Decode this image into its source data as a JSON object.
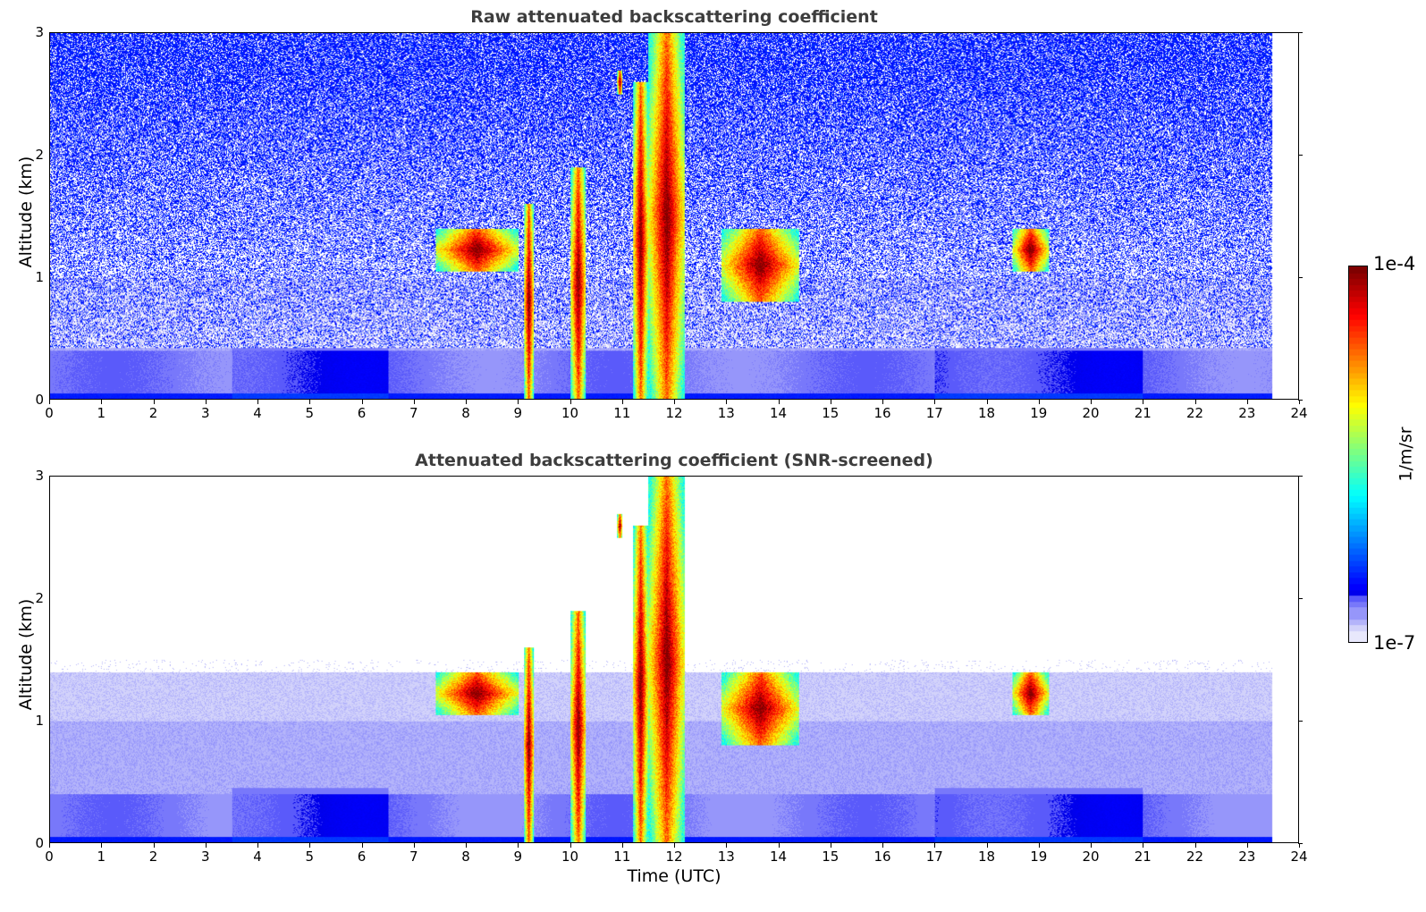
{
  "chart_data": [
    {
      "type": "heatmap",
      "title": "Raw attenuated backscattering coefficient",
      "xlabel": "",
      "ylabel": "Altitude (km)",
      "xlim": [
        0,
        24
      ],
      "ylim": [
        0,
        3
      ],
      "xticks": [
        "0",
        "1",
        "2",
        "3",
        "4",
        "5",
        "6",
        "7",
        "8",
        "9",
        "10",
        "11",
        "12",
        "13",
        "14",
        "15",
        "16",
        "17",
        "18",
        "19",
        "20",
        "21",
        "22",
        "23",
        "24"
      ],
      "yticks": [
        "0",
        "1",
        "2",
        "3"
      ],
      "data_end_time": 23.5,
      "cloud_features": [
        {
          "time_start": 7.4,
          "time_end": 9.0,
          "alt_base": 1.05,
          "alt_top": 1.4
        },
        {
          "time_start": 9.1,
          "time_end": 9.3,
          "alt_base": 0.0,
          "alt_top": 1.6
        },
        {
          "time_start": 10.0,
          "time_end": 10.3,
          "alt_base": 0.0,
          "alt_top": 1.9
        },
        {
          "time_start": 10.9,
          "time_end": 11.0,
          "alt_base": 2.5,
          "alt_top": 2.7
        },
        {
          "time_start": 11.2,
          "time_end": 11.5,
          "alt_base": 0.0,
          "alt_top": 2.6
        },
        {
          "time_start": 11.5,
          "time_end": 12.2,
          "alt_base": 0.0,
          "alt_top": 3.0
        },
        {
          "time_start": 12.9,
          "time_end": 14.4,
          "alt_base": 0.8,
          "alt_top": 1.4
        },
        {
          "time_start": 18.5,
          "time_end": 19.2,
          "alt_base": 1.05,
          "alt_top": 1.4
        }
      ]
    },
    {
      "type": "heatmap",
      "title": "Attenuated backscattering coefficient (SNR-screened)",
      "xlabel": "Time (UTC)",
      "ylabel": "Altitude (km)",
      "xlim": [
        0,
        24
      ],
      "ylim": [
        0,
        3
      ],
      "xticks": [
        "0",
        "1",
        "2",
        "3",
        "4",
        "5",
        "6",
        "7",
        "8",
        "9",
        "10",
        "11",
        "12",
        "13",
        "14",
        "15",
        "16",
        "17",
        "18",
        "19",
        "20",
        "21",
        "22",
        "23",
        "24"
      ],
      "yticks": [
        "0",
        "1",
        "2",
        "3"
      ],
      "data_end_time": 23.5,
      "cloud_features": [
        {
          "time_start": 7.4,
          "time_end": 9.0,
          "alt_base": 1.05,
          "alt_top": 1.4
        },
        {
          "time_start": 9.1,
          "time_end": 9.3,
          "alt_base": 0.0,
          "alt_top": 1.6
        },
        {
          "time_start": 10.0,
          "time_end": 10.3,
          "alt_base": 0.0,
          "alt_top": 1.9
        },
        {
          "time_start": 10.9,
          "time_end": 11.0,
          "alt_base": 2.5,
          "alt_top": 2.7
        },
        {
          "time_start": 11.2,
          "time_end": 11.5,
          "alt_base": 0.0,
          "alt_top": 2.6
        },
        {
          "time_start": 11.5,
          "time_end": 12.2,
          "alt_base": 0.0,
          "alt_top": 3.0
        },
        {
          "time_start": 12.9,
          "time_end": 14.4,
          "alt_base": 0.8,
          "alt_top": 1.4
        },
        {
          "time_start": 18.5,
          "time_end": 19.2,
          "alt_base": 1.05,
          "alt_top": 1.4
        }
      ]
    }
  ],
  "colorbar": {
    "min_label": "1e-7",
    "max_label": "1e-4",
    "unit": "1/m/sr",
    "colormap": "jet"
  }
}
